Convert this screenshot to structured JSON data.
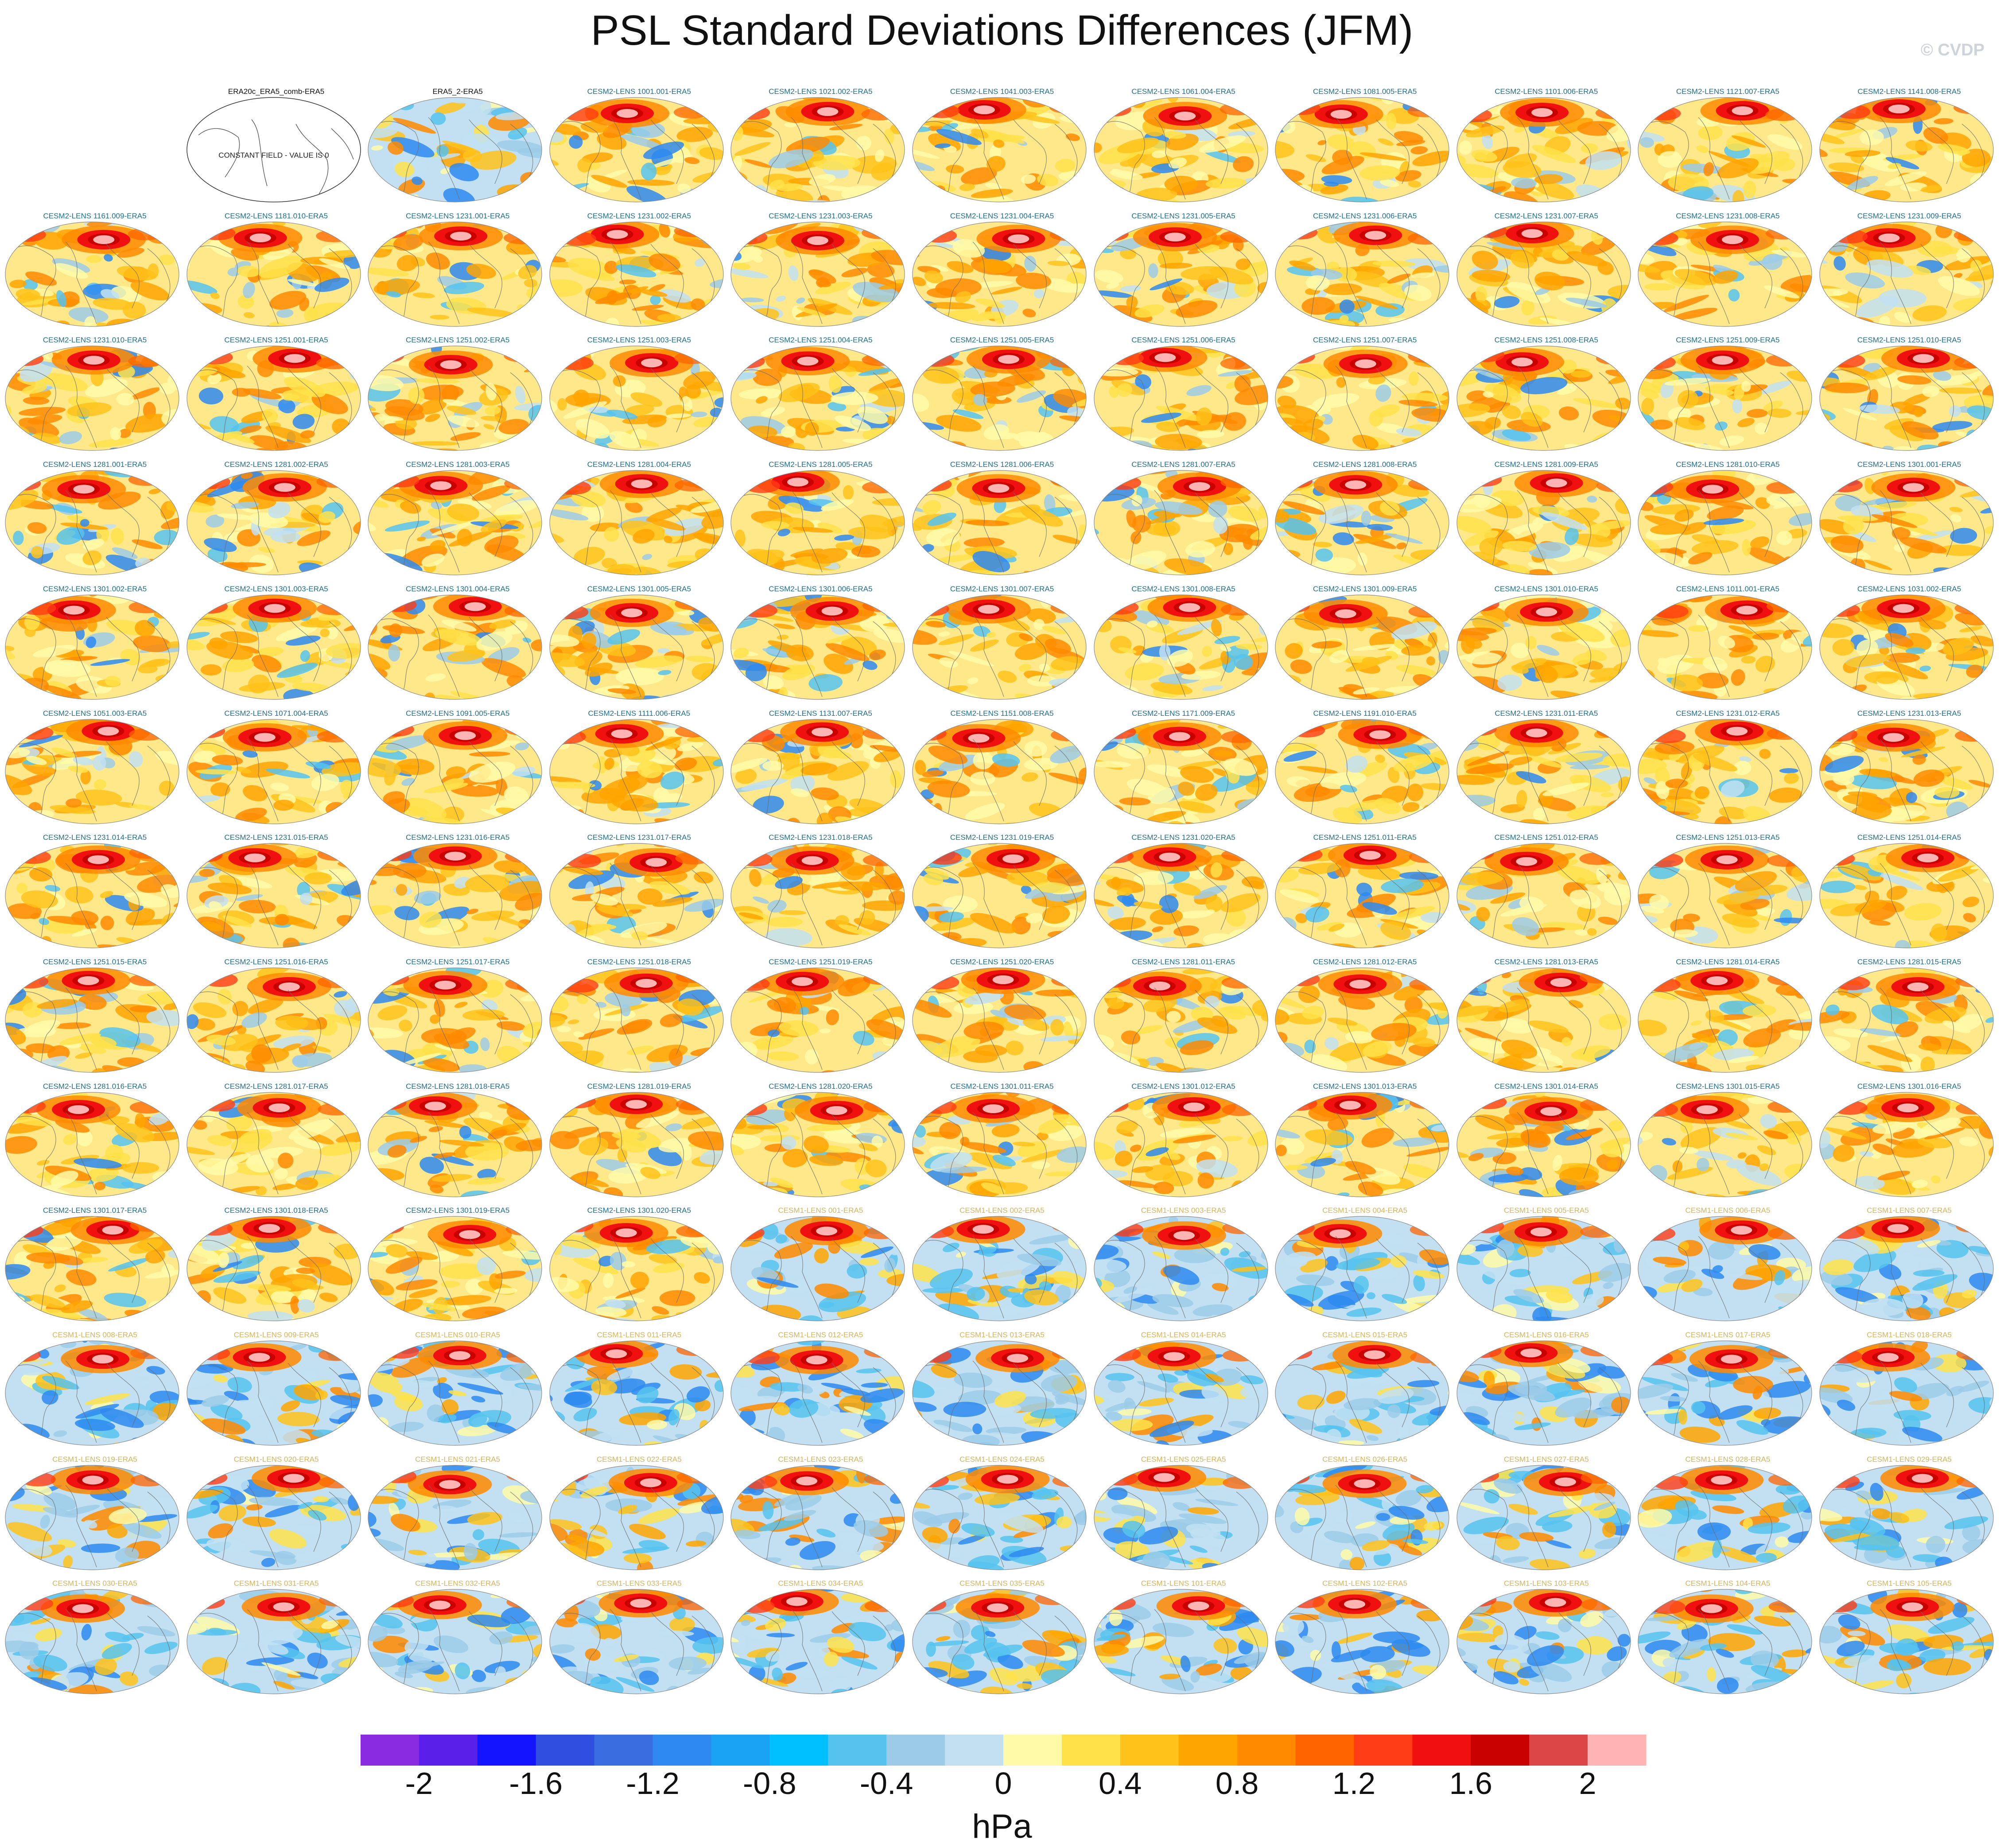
{
  "title": "PSL Standard Deviations Differences (JFM)",
  "credit": "© CVDP",
  "chart_data": {
    "type": "heatmap",
    "subtype": "small-multiple global map panels (ellipse projection)",
    "grid": {
      "columns": 11,
      "rows": 13
    },
    "panels": [
      "ERA20c_ERA5_comb-ERA5",
      "ERA5_2-ERA5",
      "CESM2-LENS 1001.001-ERA5",
      "CESM2-LENS 1021.002-ERA5",
      "CESM2-LENS 1041.003-ERA5",
      "CESM2-LENS 1061.004-ERA5",
      "CESM2-LENS 1081.005-ERA5",
      "CESM2-LENS 1101.006-ERA5",
      "CESM2-LENS 1121.007-ERA5",
      "CESM2-LENS 1141.008-ERA5",
      "CESM2-LENS 1161.009-ERA5",
      "CESM2-LENS 1181.010-ERA5",
      "CESM2-LENS 1231.001-ERA5",
      "CESM2-LENS 1231.002-ERA5",
      "CESM2-LENS 1231.003-ERA5",
      "CESM2-LENS 1231.004-ERA5",
      "CESM2-LENS 1231.005-ERA5",
      "CESM2-LENS 1231.006-ERA5",
      "CESM2-LENS 1231.007-ERA5",
      "CESM2-LENS 1231.008-ERA5",
      "CESM2-LENS 1231.009-ERA5",
      "CESM2-LENS 1231.010-ERA5",
      "CESM2-LENS 1251.001-ERA5",
      "CESM2-LENS 1251.002-ERA5",
      "CESM2-LENS 1251.003-ERA5",
      "CESM2-LENS 1251.004-ERA5",
      "CESM2-LENS 1251.005-ERA5",
      "CESM2-LENS 1251.006-ERA5",
      "CESM2-LENS 1251.007-ERA5",
      "CESM2-LENS 1251.008-ERA5",
      "CESM2-LENS 1251.009-ERA5",
      "CESM2-LENS 1251.010-ERA5",
      "CESM2-LENS 1281.001-ERA5",
      "CESM2-LENS 1281.002-ERA5",
      "CESM2-LENS 1281.003-ERA5",
      "CESM2-LENS 1281.004-ERA5",
      "CESM2-LENS 1281.005-ERA5",
      "CESM2-LENS 1281.006-ERA5",
      "CESM2-LENS 1281.007-ERA5",
      "CESM2-LENS 1281.008-ERA5",
      "CESM2-LENS 1281.009-ERA5",
      "CESM2-LENS 1281.010-ERA5",
      "CESM2-LENS 1301.001-ERA5",
      "CESM2-LENS 1301.002-ERA5",
      "CESM2-LENS 1301.003-ERA5",
      "CESM2-LENS 1301.004-ERA5",
      "CESM2-LENS 1301.005-ERA5",
      "CESM2-LENS 1301.006-ERA5",
      "CESM2-LENS 1301.007-ERA5",
      "CESM2-LENS 1301.008-ERA5",
      "CESM2-LENS 1301.009-ERA5",
      "CESM2-LENS 1301.010-ERA5",
      "CESM2-LENS 1011.001-ERA5",
      "CESM2-LENS 1031.002-ERA5",
      "CESM2-LENS 1051.003-ERA5",
      "CESM2-LENS 1071.004-ERA5",
      "CESM2-LENS 1091.005-ERA5",
      "CESM2-LENS 1111.006-ERA5",
      "CESM2-LENS 1131.007-ERA5",
      "CESM2-LENS 1151.008-ERA5",
      "CESM2-LENS 1171.009-ERA5",
      "CESM2-LENS 1191.010-ERA5",
      "CESM2-LENS 1231.011-ERA5",
      "CESM2-LENS 1231.012-ERA5",
      "CESM2-LENS 1231.013-ERA5",
      "CESM2-LENS 1231.014-ERA5",
      "CESM2-LENS 1231.015-ERA5",
      "CESM2-LENS 1231.016-ERA5",
      "CESM2-LENS 1231.017-ERA5",
      "CESM2-LENS 1231.018-ERA5",
      "CESM2-LENS 1231.019-ERA5",
      "CESM2-LENS 1231.020-ERA5",
      "CESM2-LENS 1251.011-ERA5",
      "CESM2-LENS 1251.012-ERA5",
      "CESM2-LENS 1251.013-ERA5",
      "CESM2-LENS 1251.014-ERA5",
      "CESM2-LENS 1251.015-ERA5",
      "CESM2-LENS 1251.016-ERA5",
      "CESM2-LENS 1251.017-ERA5",
      "CESM2-LENS 1251.018-ERA5",
      "CESM2-LENS 1251.019-ERA5",
      "CESM2-LENS 1251.020-ERA5",
      "CESM2-LENS 1281.011-ERA5",
      "CESM2-LENS 1281.012-ERA5",
      "CESM2-LENS 1281.013-ERA5",
      "CESM2-LENS 1281.014-ERA5",
      "CESM2-LENS 1281.015-ERA5",
      "CESM2-LENS 1281.016-ERA5",
      "CESM2-LENS 1281.017-ERA5",
      "CESM2-LENS 1281.018-ERA5",
      "CESM2-LENS 1281.019-ERA5",
      "CESM2-LENS 1281.020-ERA5",
      "CESM2-LENS 1301.011-ERA5",
      "CESM2-LENS 1301.012-ERA5",
      "CESM2-LENS 1301.013-ERA5",
      "CESM2-LENS 1301.014-ERA5",
      "CESM2-LENS 1301.015-ERA5",
      "CESM2-LENS 1301.016-ERA5",
      "CESM2-LENS 1301.017-ERA5",
      "CESM2-LENS 1301.018-ERA5",
      "CESM2-LENS 1301.019-ERA5",
      "CESM2-LENS 1301.020-ERA5",
      "CESM1-LENS 001-ERA5",
      "CESM1-LENS 002-ERA5",
      "CESM1-LENS 003-ERA5",
      "CESM1-LENS 004-ERA5",
      "CESM1-LENS 005-ERA5",
      "CESM1-LENS 006-ERA5",
      "CESM1-LENS 007-ERA5",
      "CESM1-LENS 008-ERA5",
      "CESM1-LENS 009-ERA5",
      "CESM1-LENS 010-ERA5",
      "CESM1-LENS 011-ERA5",
      "CESM1-LENS 012-ERA5",
      "CESM1-LENS 013-ERA5",
      "CESM1-LENS 014-ERA5",
      "CESM1-LENS 015-ERA5",
      "CESM1-LENS 016-ERA5",
      "CESM1-LENS 017-ERA5",
      "CESM1-LENS 018-ERA5",
      "CESM1-LENS 019-ERA5",
      "CESM1-LENS 020-ERA5",
      "CESM1-LENS 021-ERA5",
      "CESM1-LENS 022-ERA5",
      "CESM1-LENS 023-ERA5",
      "CESM1-LENS 024-ERA5",
      "CESM1-LENS 025-ERA5",
      "CESM1-LENS 026-ERA5",
      "CESM1-LENS 027-ERA5",
      "CESM1-LENS 028-ERA5",
      "CESM1-LENS 029-ERA5",
      "CESM1-LENS 030-ERA5",
      "CESM1-LENS 031-ERA5",
      "CESM1-LENS 032-ERA5",
      "CESM1-LENS 033-ERA5",
      "CESM1-LENS 034-ERA5",
      "CESM1-LENS 035-ERA5",
      "CESM1-LENS 101-ERA5",
      "CESM1-LENS 102-ERA5",
      "CESM1-LENS 103-ERA5",
      "CESM1-LENS 104-ERA5",
      "CESM1-LENS 105-ERA5"
    ],
    "constant_field_label": "CONSTANT FIELD - VALUE IS 0",
    "label_colors": {
      "observation": "#111111",
      "cesm2": "#1f6f8f",
      "cesm1": "#d7b45a"
    },
    "colorbar": {
      "levels": [
        -2.2,
        -2,
        -1.8,
        -1.6,
        -1.4,
        -1.2,
        -1,
        -0.8,
        -0.6,
        -0.4,
        -0.2,
        0,
        0.2,
        0.4,
        0.6,
        0.8,
        1,
        1.2,
        1.4,
        1.6,
        1.8,
        2,
        2.2
      ],
      "colors": [
        "#8a2be2",
        "#5a1fe8",
        "#1414ff",
        "#2f4fe0",
        "#3a6ee0",
        "#2e8af0",
        "#1aa2f5",
        "#00bfff",
        "#56c3ef",
        "#9ccbe8",
        "#c2e0f2",
        "#fffaa8",
        "#ffe24a",
        "#ffc21a",
        "#ffa500",
        "#ff8a00",
        "#ff6400",
        "#ff3c14",
        "#f01010",
        "#c80000",
        "#dc4646",
        "#ffb4b4"
      ],
      "tick_values": [
        -2,
        -1.6,
        -1.2,
        -0.8,
        -0.4,
        0,
        0.4,
        0.8,
        1.2,
        1.6,
        2
      ],
      "tick_labels": [
        "-2",
        "-1.6",
        "-1.2",
        "-0.8",
        "-0.4",
        "0",
        "0.4",
        "0.8",
        "1.2",
        "1.6",
        "2"
      ],
      "unit": "hPa"
    }
  }
}
